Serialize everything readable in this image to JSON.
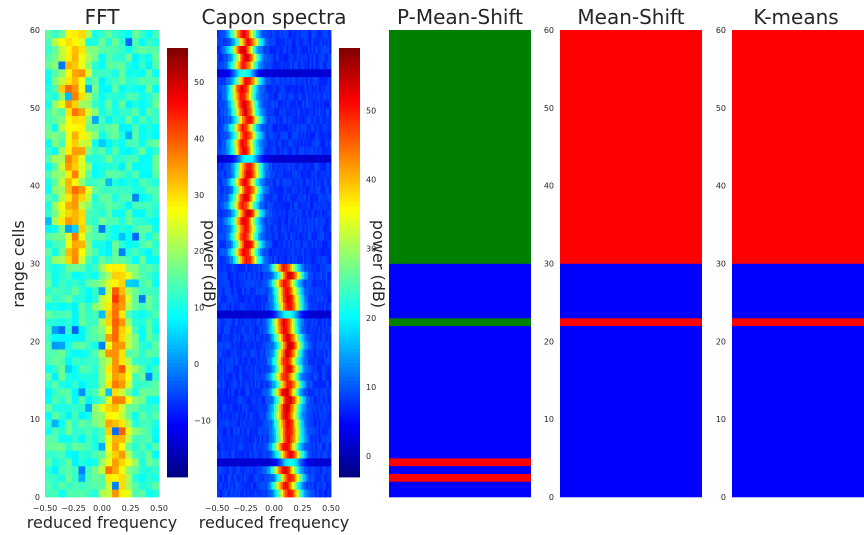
{
  "chart_data": [
    {
      "type": "heatmap",
      "title": "FFT",
      "xlabel": "reduced frequency",
      "ylabel": "range cells",
      "xlim": [
        -0.5,
        0.5
      ],
      "ylim": [
        0,
        60
      ],
      "xticks": [
        "−0.50",
        "−0.25",
        "0.00",
        "0.25",
        "0.50"
      ],
      "yticks": [
        "0",
        "10",
        "20",
        "30",
        "40",
        "50",
        "60"
      ],
      "colorbar": {
        "label": "power (dB)",
        "min": -20,
        "max": 56,
        "ticks": [
          "−10",
          "0",
          "10",
          "20",
          "30",
          "40",
          "50"
        ],
        "tick_values": [
          -10,
          0,
          10,
          20,
          30,
          40,
          50
        ]
      },
      "colormap": "jet",
      "rows": 60,
      "cols": 17,
      "signal_center_by_cell": {
        "cells_0_29": 0.12,
        "cells_30_59": -0.25
      }
    },
    {
      "type": "heatmap",
      "title": "Capon spectra",
      "xlabel": "reduced frequency",
      "xlim": [
        -0.5,
        0.5
      ],
      "ylim": [
        0,
        60
      ],
      "xticks": [
        "−0.50",
        "−0.25",
        "0.00",
        "0.25",
        "0.50"
      ],
      "colorbar": {
        "label": "power (dB)",
        "min": -3,
        "max": 59,
        "ticks": [
          "0",
          "10",
          "20",
          "30",
          "40",
          "50"
        ],
        "tick_values": [
          0,
          10,
          20,
          30,
          40,
          50
        ]
      },
      "colormap": "jet",
      "rows": 60,
      "cols": 64,
      "signal_center_by_cell": {
        "cells_0_29": 0.12,
        "cells_30_59": -0.25
      }
    },
    {
      "type": "heatmap",
      "title": "P-Mean-Shift",
      "ylim": [
        0,
        60
      ],
      "colors": {
        "blue": "#0000ff",
        "green": "#008000",
        "red": "#ff0000"
      },
      "segments": [
        {
          "from": 0,
          "to": 2,
          "color": "blue"
        },
        {
          "from": 2,
          "to": 3,
          "color": "red"
        },
        {
          "from": 3,
          "to": 4,
          "color": "blue"
        },
        {
          "from": 4,
          "to": 5,
          "color": "red"
        },
        {
          "from": 5,
          "to": 22,
          "color": "blue"
        },
        {
          "from": 22,
          "to": 23,
          "color": "green"
        },
        {
          "from": 23,
          "to": 30,
          "color": "blue"
        },
        {
          "from": 30,
          "to": 60,
          "color": "green"
        }
      ]
    },
    {
      "type": "heatmap",
      "title": "Mean-Shift",
      "ylim": [
        0,
        60
      ],
      "yticks": [
        "0",
        "10",
        "20",
        "30",
        "40",
        "50",
        "60"
      ],
      "colors": {
        "blue": "#0000ff",
        "red": "#ff0000"
      },
      "segments": [
        {
          "from": 0,
          "to": 22,
          "color": "blue"
        },
        {
          "from": 22,
          "to": 23,
          "color": "red"
        },
        {
          "from": 23,
          "to": 30,
          "color": "blue"
        },
        {
          "from": 30,
          "to": 60,
          "color": "red"
        }
      ]
    },
    {
      "type": "heatmap",
      "title": "K-means",
      "ylim": [
        0,
        60
      ],
      "yticks": [
        "0",
        "10",
        "20",
        "30",
        "40",
        "50",
        "60"
      ],
      "colors": {
        "blue": "#0000ff",
        "red": "#ff0000"
      },
      "segments": [
        {
          "from": 0,
          "to": 22,
          "color": "blue"
        },
        {
          "from": 22,
          "to": 23,
          "color": "red"
        },
        {
          "from": 23,
          "to": 30,
          "color": "blue"
        },
        {
          "from": 30,
          "to": 60,
          "color": "red"
        }
      ]
    }
  ]
}
